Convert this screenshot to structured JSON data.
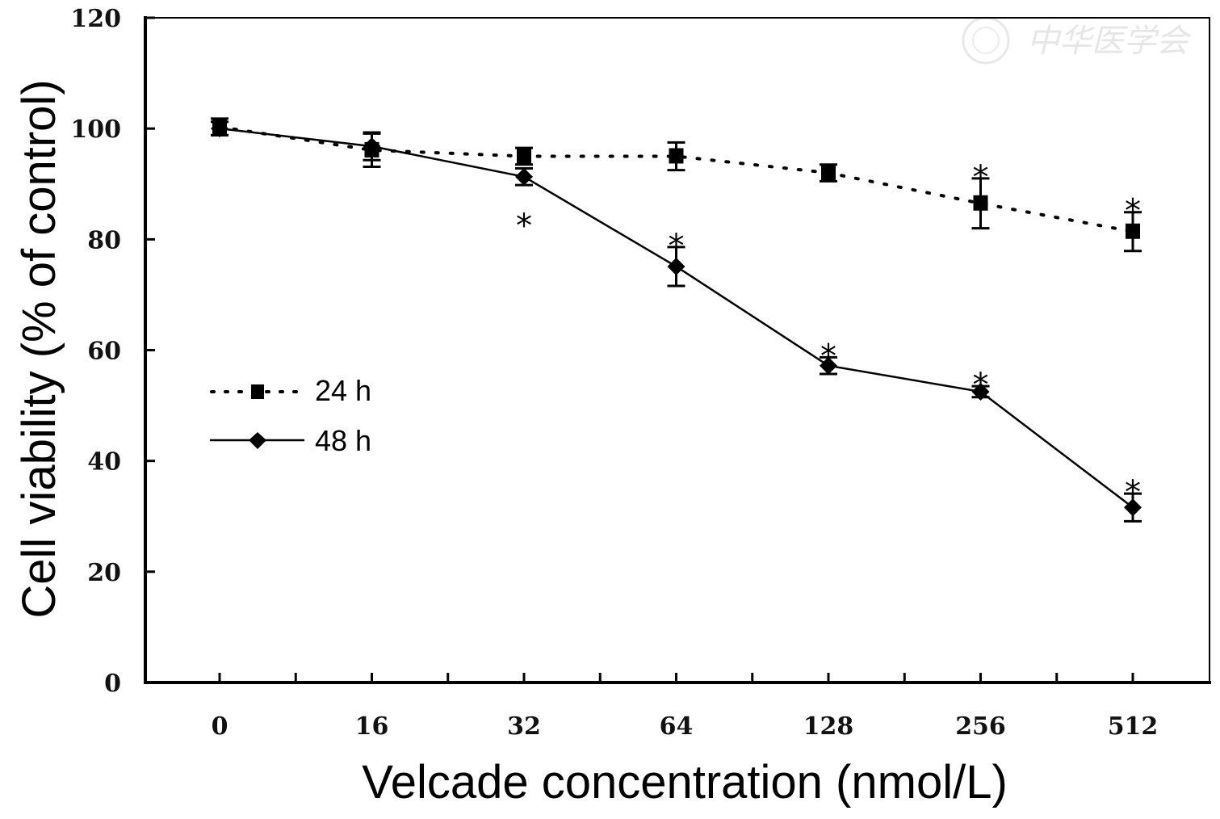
{
  "chart_data": {
    "type": "line",
    "title": "",
    "xlabel": "Velcade concentration (nmol/L)",
    "ylabel": "Cell viability (% of control)",
    "categories": [
      "0",
      "16",
      "32",
      "64",
      "128",
      "256",
      "512"
    ],
    "ylim": [
      0,
      120
    ],
    "yticks": [
      0,
      20,
      40,
      60,
      80,
      100,
      120
    ],
    "grid": false,
    "legend_position": "center-left",
    "series": [
      {
        "name": "24 h",
        "line_style": "dotted",
        "marker": "square",
        "values": [
          100.3,
          96.1,
          95.0,
          95.0,
          92.0,
          86.5,
          81.4
        ],
        "errors": [
          1.5,
          3.0,
          1.5,
          2.5,
          1.5,
          4.5,
          3.5
        ],
        "significant": [
          false,
          false,
          false,
          false,
          false,
          true,
          true
        ]
      },
      {
        "name": "48 h",
        "line_style": "solid",
        "marker": "diamond",
        "values": [
          100.0,
          96.8,
          91.3,
          75.1,
          57.2,
          52.5,
          31.6
        ],
        "errors": [
          1.2,
          2.5,
          1.5,
          3.5,
          1.5,
          1.0,
          2.5
        ],
        "significant": [
          false,
          false,
          true,
          true,
          true,
          true,
          true
        ]
      }
    ],
    "annotations": [
      "*"
    ],
    "colors": {
      "ink": "#000000",
      "background": "#ffffff",
      "watermark": "#e6e6e6"
    }
  },
  "watermark": {
    "text": "中华医学会"
  }
}
